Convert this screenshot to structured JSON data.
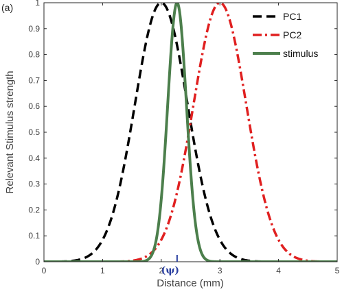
{
  "chart_data": {
    "type": "line",
    "panel_label": "(a)",
    "xlabel": "Distance (mm)",
    "ylabel": "Relevant Stimulus strength",
    "xlim": [
      0,
      5
    ],
    "ylim": [
      0,
      1
    ],
    "xticks": [
      "0",
      "1",
      "2",
      "3",
      "4",
      "5"
    ],
    "yticks": [
      "0",
      "0.1",
      "0.2",
      "0.3",
      "0.4",
      "0.5",
      "0.6",
      "0.7",
      "0.8",
      "0.9",
      "1"
    ],
    "grid": false,
    "legend_position": "top-right",
    "annotation": {
      "text": "(ψ)",
      "x": 2.27
    },
    "series": [
      {
        "name": "PC1",
        "color": "#000000",
        "style": "dashed",
        "peak_x": 2.0,
        "peak_y": 1.0,
        "sigma": 0.45,
        "x": [
          0.1,
          0.5,
          1.0,
          1.5,
          2.0,
          2.5,
          3.0,
          3.5,
          4.0
        ],
        "y": [
          0.0,
          0.02,
          0.09,
          0.54,
          1.0,
          0.54,
          0.09,
          0.01,
          0.0
        ]
      },
      {
        "name": "PC2",
        "color": "#e02020",
        "style": "dashdot",
        "peak_x": 3.0,
        "peak_y": 1.0,
        "sigma": 0.45,
        "x": [
          1.0,
          1.5,
          2.0,
          2.5,
          3.0,
          3.5,
          4.0,
          4.5,
          5.0
        ],
        "y": [
          0.0,
          0.01,
          0.09,
          0.54,
          1.0,
          0.54,
          0.09,
          0.01,
          0.0
        ]
      },
      {
        "name": "stimulus",
        "color": "#4c7f4c",
        "style": "solid",
        "peak_x": 2.27,
        "peak_y": 1.0,
        "sigma": 0.16,
        "x": [
          1.7,
          1.9,
          2.1,
          2.27,
          2.45,
          2.65,
          2.85
        ],
        "y": [
          0.0,
          0.07,
          0.55,
          1.0,
          0.53,
          0.06,
          0.0
        ]
      }
    ]
  }
}
